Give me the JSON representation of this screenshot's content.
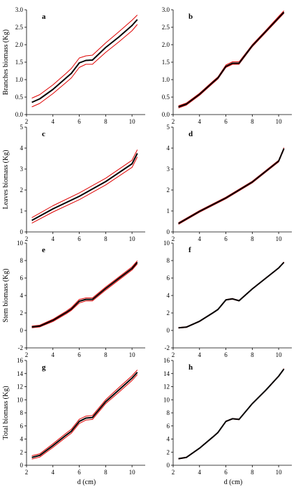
{
  "colors": {
    "mean": "#000000",
    "bounds": "#e00000"
  },
  "figure": {
    "xlabel": "d (cm)"
  },
  "chart_data": [
    {
      "panel": "a",
      "type": "line",
      "ylabel": "Branches biomass (Kg)",
      "xlim": [
        2,
        11
      ],
      "ylim": [
        0,
        3
      ],
      "x_ticks": [
        "2",
        "4",
        "6",
        "8",
        "10"
      ],
      "y_ticks": [
        "0.0",
        "0.5",
        "1.0",
        "1.5",
        "2.0",
        "2.5",
        "3.0"
      ],
      "x": [
        2.4,
        3,
        4,
        5,
        5.4,
        6,
        6.5,
        7,
        8,
        9,
        10,
        10.4
      ],
      "series": [
        {
          "role": "mean",
          "values": [
            0.35,
            0.45,
            0.72,
            1.05,
            1.18,
            1.48,
            1.55,
            1.56,
            1.92,
            2.22,
            2.55,
            2.72
          ]
        },
        {
          "role": "upper",
          "values": [
            0.47,
            0.57,
            0.85,
            1.18,
            1.32,
            1.62,
            1.68,
            1.7,
            2.05,
            2.37,
            2.7,
            2.85
          ]
        },
        {
          "role": "lower",
          "values": [
            0.22,
            0.32,
            0.6,
            0.92,
            1.05,
            1.35,
            1.44,
            1.44,
            1.78,
            2.08,
            2.4,
            2.58
          ]
        }
      ]
    },
    {
      "panel": "b",
      "type": "line",
      "ylabel": "",
      "xlim": [
        2,
        11
      ],
      "ylim": [
        0,
        3
      ],
      "x_ticks": [
        "2",
        "4",
        "6",
        "8",
        "10"
      ],
      "y_ticks": [
        "0.0",
        "0.5",
        "1.0",
        "1.5",
        "2.0",
        "2.5",
        "3.0"
      ],
      "x": [
        2.4,
        3,
        4,
        5,
        5.4,
        6,
        6.5,
        7,
        8,
        9,
        10,
        10.4
      ],
      "series": [
        {
          "role": "mean",
          "values": [
            0.22,
            0.3,
            0.58,
            0.92,
            1.05,
            1.38,
            1.47,
            1.47,
            1.97,
            2.37,
            2.77,
            2.93
          ]
        },
        {
          "role": "upper",
          "values": [
            0.25,
            0.33,
            0.61,
            0.95,
            1.08,
            1.42,
            1.51,
            1.51,
            2.0,
            2.4,
            2.81,
            2.97
          ]
        },
        {
          "role": "lower",
          "values": [
            0.19,
            0.27,
            0.55,
            0.89,
            1.02,
            1.35,
            1.44,
            1.44,
            1.94,
            2.34,
            2.74,
            2.9
          ]
        }
      ]
    },
    {
      "panel": "c",
      "type": "line",
      "ylabel": "Leaves biomass (Kg)",
      "xlim": [
        2,
        11
      ],
      "ylim": [
        0,
        5
      ],
      "x_ticks": [
        "2",
        "4",
        "6",
        "8",
        "10"
      ],
      "y_ticks": [
        "0",
        "1",
        "2",
        "3",
        "4",
        "5"
      ],
      "x": [
        2.4,
        4,
        6,
        8,
        10,
        10.4
      ],
      "series": [
        {
          "role": "mean",
          "values": [
            0.55,
            1.1,
            1.7,
            2.4,
            3.25,
            3.75
          ]
        },
        {
          "role": "upper",
          "values": [
            0.68,
            1.25,
            1.86,
            2.56,
            3.42,
            3.92
          ]
        },
        {
          "role": "lower",
          "values": [
            0.42,
            0.95,
            1.54,
            2.24,
            3.08,
            3.58
          ]
        }
      ]
    },
    {
      "panel": "d",
      "type": "line",
      "ylabel": "",
      "xlim": [
        2,
        11
      ],
      "ylim": [
        0,
        5
      ],
      "x_ticks": [
        "2",
        "4",
        "6",
        "8",
        "10"
      ],
      "y_ticks": [
        "0",
        "1",
        "2",
        "3",
        "4",
        "5"
      ],
      "x": [
        2.4,
        4,
        6,
        8,
        10,
        10.4
      ],
      "series": [
        {
          "role": "mean",
          "values": [
            0.4,
            0.98,
            1.62,
            2.38,
            3.38,
            3.98
          ]
        },
        {
          "role": "upper",
          "values": [
            0.44,
            1.02,
            1.66,
            2.42,
            3.42,
            4.02
          ]
        },
        {
          "role": "lower",
          "values": [
            0.36,
            0.94,
            1.58,
            2.34,
            3.34,
            3.94
          ]
        }
      ]
    },
    {
      "panel": "e",
      "type": "line",
      "ylabel": "Stem biomass (Kg)",
      "xlim": [
        2,
        11
      ],
      "ylim": [
        -2,
        10
      ],
      "x_ticks": [
        "2",
        "4",
        "6",
        "8",
        "10"
      ],
      "y_ticks": [
        "-2",
        "0",
        "2",
        "4",
        "6",
        "8",
        "10"
      ],
      "x": [
        2.4,
        3,
        4,
        5,
        5.4,
        6,
        6.5,
        7,
        8,
        9,
        10,
        10.4
      ],
      "series": [
        {
          "role": "mean",
          "values": [
            0.4,
            0.5,
            1.15,
            2.05,
            2.45,
            3.35,
            3.55,
            3.55,
            4.8,
            5.95,
            7.1,
            7.8
          ]
        },
        {
          "role": "upper",
          "values": [
            0.5,
            0.6,
            1.28,
            2.2,
            2.62,
            3.55,
            3.72,
            3.72,
            4.97,
            6.12,
            7.28,
            7.98
          ]
        },
        {
          "role": "lower",
          "values": [
            0.3,
            0.4,
            1.02,
            1.9,
            2.3,
            3.15,
            3.38,
            3.38,
            4.62,
            5.78,
            6.92,
            7.62
          ]
        }
      ]
    },
    {
      "panel": "f",
      "type": "line",
      "ylabel": "",
      "xlim": [
        2,
        11
      ],
      "ylim": [
        -2,
        10
      ],
      "x_ticks": [
        "2",
        "4",
        "6",
        "8",
        "10"
      ],
      "y_ticks": [
        "-2",
        "0",
        "2",
        "4",
        "6",
        "8",
        "10"
      ],
      "x": [
        2.4,
        3,
        4,
        5,
        5.4,
        6,
        6.5,
        7,
        8,
        9,
        10,
        10.4
      ],
      "series": [
        {
          "role": "mean",
          "values": [
            0.3,
            0.38,
            1.05,
            2.0,
            2.4,
            3.5,
            3.62,
            3.4,
            4.75,
            5.95,
            7.15,
            7.8
          ]
        },
        {
          "role": "upper",
          "values": [
            0.34,
            0.42,
            1.09,
            2.04,
            2.44,
            3.54,
            3.66,
            3.44,
            4.79,
            5.99,
            7.19,
            7.84
          ]
        },
        {
          "role": "lower",
          "values": [
            0.26,
            0.34,
            1.01,
            1.96,
            2.36,
            3.46,
            3.58,
            3.36,
            4.71,
            5.91,
            7.11,
            7.76
          ]
        }
      ]
    },
    {
      "panel": "g",
      "type": "line",
      "ylabel": "Total biomass (Kg)",
      "xlim": [
        2,
        11
      ],
      "ylim": [
        0,
        16
      ],
      "x_ticks": [
        "2",
        "4",
        "6",
        "8",
        "10"
      ],
      "y_ticks": [
        "0",
        "2",
        "4",
        "6",
        "8",
        "10",
        "12",
        "14",
        "16"
      ],
      "x": [
        2.4,
        3,
        4,
        5,
        5.4,
        6,
        6.5,
        7,
        8,
        9,
        10,
        10.4
      ],
      "series": [
        {
          "role": "mean",
          "values": [
            1.2,
            1.5,
            3.0,
            4.6,
            5.2,
            6.7,
            7.2,
            7.3,
            9.7,
            11.5,
            13.3,
            14.2
          ]
        },
        {
          "role": "upper",
          "values": [
            1.45,
            1.75,
            3.28,
            4.9,
            5.5,
            7.02,
            7.5,
            7.6,
            10.0,
            11.85,
            13.65,
            14.55
          ]
        },
        {
          "role": "lower",
          "values": [
            0.95,
            1.25,
            2.72,
            4.3,
            4.9,
            6.38,
            6.9,
            7.0,
            9.4,
            11.15,
            12.95,
            13.85
          ]
        }
      ]
    },
    {
      "panel": "h",
      "type": "line",
      "ylabel": "",
      "xlim": [
        2,
        11
      ],
      "ylim": [
        0,
        16
      ],
      "x_ticks": [
        "2",
        "4",
        "6",
        "8",
        "10"
      ],
      "y_ticks": [
        "0",
        "2",
        "4",
        "6",
        "8",
        "10",
        "12",
        "14",
        "16"
      ],
      "x": [
        2.4,
        3,
        4,
        5,
        5.4,
        6,
        6.5,
        7,
        8,
        9,
        10,
        10.4
      ],
      "series": [
        {
          "role": "mean",
          "values": [
            1.0,
            1.2,
            2.6,
            4.3,
            5.0,
            6.7,
            7.1,
            7.0,
            9.4,
            11.4,
            13.6,
            14.7
          ]
        },
        {
          "role": "upper",
          "values": [
            1.05,
            1.25,
            2.65,
            4.35,
            5.05,
            6.75,
            7.15,
            7.05,
            9.45,
            11.45,
            13.65,
            14.75
          ]
        },
        {
          "role": "lower",
          "values": [
            0.95,
            1.15,
            2.55,
            4.25,
            4.95,
            6.65,
            7.05,
            6.95,
            9.35,
            11.35,
            13.55,
            14.65
          ]
        }
      ]
    }
  ]
}
